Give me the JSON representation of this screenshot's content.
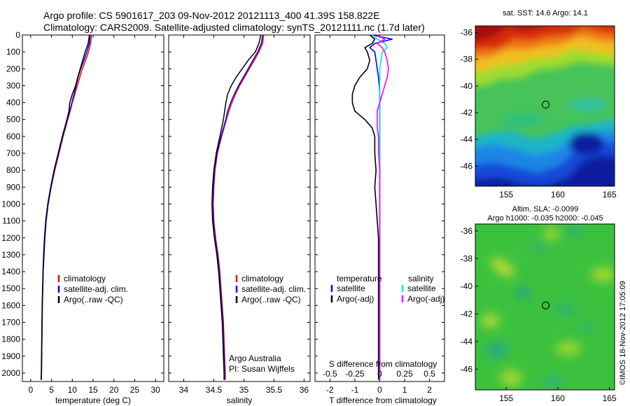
{
  "title": {
    "line1": "Argo profile: CS 5901617_203 09-Nov-2012 20121113_400 41.39S 158.822E",
    "line2": "Climatology: CARS2009. Satellite-adjusted climatology: synTS_20121111.nc (1.7d later)"
  },
  "colors": {
    "climatology": "#ff0000",
    "satellite": "#0000ff",
    "argo": "#000000",
    "sat_salinity": "#00e5e5",
    "argo_adj_salinity": "#ff00ff"
  },
  "depth_axis": {
    "ylim": [
      0,
      2050
    ],
    "ticks": [
      "0",
      "100",
      "200",
      "300",
      "400",
      "500",
      "600",
      "700",
      "800",
      "900",
      "1000",
      "1100",
      "1200",
      "1300",
      "1400",
      "1500",
      "1600",
      "1700",
      "1800",
      "1900",
      "2000"
    ]
  },
  "chart_data": [
    {
      "type": "line",
      "name": "temperature",
      "xlabel": "temperature (deg C)",
      "xlim": [
        -2,
        32
      ],
      "xticks": [
        "0",
        "5",
        "10",
        "15",
        "20",
        "25",
        "30"
      ],
      "legend": [
        "climatology",
        "satellite-adj. clim.",
        "Argo(..raw -QC)"
      ],
      "depth": [
        0,
        50,
        100,
        150,
        200,
        250,
        300,
        350,
        400,
        450,
        500,
        600,
        700,
        800,
        900,
        1000,
        1100,
        1200,
        1300,
        1400,
        1500,
        1600,
        1700,
        1800,
        1900,
        2000,
        2040
      ],
      "series": [
        {
          "name": "climatology",
          "color": "#ff0000",
          "values": [
            14.6,
            14.4,
            13.9,
            13.2,
            12.4,
            11.8,
            11.2,
            10.6,
            10.0,
            9.5,
            8.9,
            7.8,
            6.8,
            5.8,
            4.9,
            4.2,
            3.7,
            3.4,
            3.2,
            3.0,
            2.9,
            2.8,
            2.75,
            2.7,
            2.65,
            2.6,
            2.55
          ]
        },
        {
          "name": "satellite-adj. clim.",
          "color": "#0000ff",
          "values": [
            14.3,
            14.1,
            13.5,
            12.8,
            12.0,
            11.4,
            10.9,
            10.4,
            9.9,
            9.4,
            8.8,
            7.7,
            6.7,
            5.7,
            4.9,
            4.2,
            3.7,
            3.4,
            3.2,
            3.0,
            2.9,
            2.8,
            2.75,
            2.7,
            2.65,
            2.6,
            2.55
          ]
        },
        {
          "name": "Argo(..raw -QC)",
          "color": "#000000",
          "values": [
            14.1,
            13.8,
            13.1,
            12.5,
            11.9,
            11.3,
            10.8,
            10.0,
            9.4,
            9.2,
            8.7,
            7.6,
            6.6,
            5.6,
            4.8,
            4.1,
            3.6,
            3.3,
            3.1,
            2.95,
            2.85,
            2.75,
            2.7,
            2.65,
            2.6,
            2.55,
            2.5
          ]
        }
      ]
    },
    {
      "type": "line",
      "name": "salinity",
      "xlabel": "salinity",
      "xlim": [
        33.75,
        36.1
      ],
      "xticks": [
        "34",
        "34.5",
        "35",
        "35.5",
        "36"
      ],
      "legend": [
        "climatology",
        "satellite-adj. clim.",
        "Argo(..raw -QC)"
      ],
      "annotation": [
        "Argo Australia",
        "PI: Susan Wijffels"
      ],
      "depth": [
        0,
        50,
        100,
        150,
        200,
        250,
        300,
        350,
        400,
        450,
        500,
        600,
        700,
        800,
        900,
        1000,
        1100,
        1200,
        1300,
        1400,
        1500,
        1600,
        1700,
        1800,
        1900,
        2000,
        2040
      ],
      "series": [
        {
          "name": "climatology",
          "color": "#ff0000",
          "values": [
            35.33,
            35.31,
            35.25,
            35.17,
            35.09,
            35.01,
            34.93,
            34.86,
            34.8,
            34.75,
            34.71,
            34.63,
            34.56,
            34.52,
            34.5,
            34.49,
            34.5,
            34.53,
            34.57,
            34.6,
            34.62,
            34.64,
            34.66,
            34.67,
            34.68,
            34.69,
            34.69
          ]
        },
        {
          "name": "satellite-adj. clim.",
          "color": "#0000ff",
          "values": [
            35.31,
            35.29,
            35.23,
            35.15,
            35.07,
            34.99,
            34.91,
            34.84,
            34.78,
            34.73,
            34.7,
            34.62,
            34.55,
            34.51,
            34.49,
            34.48,
            34.49,
            34.52,
            34.56,
            34.59,
            34.61,
            34.63,
            34.65,
            34.66,
            34.67,
            34.68,
            34.68
          ]
        },
        {
          "name": "Argo(..raw -QC)",
          "color": "#000000",
          "values": [
            35.28,
            35.25,
            35.19,
            35.07,
            34.97,
            34.87,
            34.79,
            34.73,
            34.7,
            34.68,
            34.66,
            34.6,
            34.54,
            34.5,
            34.48,
            34.47,
            34.48,
            34.51,
            34.55,
            34.58,
            34.6,
            34.62,
            34.64,
            34.65,
            34.66,
            34.67,
            34.67
          ]
        }
      ]
    },
    {
      "type": "line",
      "name": "difference",
      "xlabel": "T difference from climatology",
      "xlabel_top": "S difference from climatology",
      "xlim": [
        -2.6,
        2.6
      ],
      "xticks": [
        "-2",
        "-1",
        "0",
        "1",
        "2"
      ],
      "xticks_top": [
        "-0.5",
        "-0.25",
        "0",
        "0.25",
        "0.5"
      ],
      "legend_temperature": {
        "title": "temperature",
        "items": [
          "satellite",
          "Argo(-adj)"
        ]
      },
      "legend_salinity": {
        "title": "salinity",
        "items": [
          "satellite",
          "Argo(-adj)"
        ]
      },
      "depth": [
        0,
        25,
        50,
        75,
        100,
        150,
        200,
        250,
        300,
        350,
        400,
        450,
        500,
        550,
        600,
        700,
        800,
        900,
        1000,
        1100,
        1200,
        1400,
        1600,
        1800,
        2000,
        2040
      ],
      "series": [
        {
          "name": "temperature satellite",
          "color": "#0000ff",
          "values": [
            -0.3,
            0.5,
            -0.2,
            -0.4,
            -0.2,
            -0.15,
            -0.1,
            -0.05,
            -0.02,
            0,
            0,
            0,
            0,
            0,
            0,
            0,
            0,
            0,
            0,
            0,
            0,
            0,
            0,
            0,
            0,
            0
          ]
        },
        {
          "name": "temperature Argo(-adj)",
          "color": "#000000",
          "values": [
            -0.4,
            -0.2,
            -0.3,
            -0.6,
            -0.5,
            -0.4,
            -0.5,
            -0.8,
            -1.0,
            -1.1,
            -1.1,
            -1.0,
            -0.6,
            -0.3,
            -0.2,
            -0.2,
            -0.15,
            -0.2,
            -0.15,
            -0.1,
            -0.05,
            -0.05,
            -0.05,
            -0.05,
            -0.05,
            -0.05
          ]
        },
        {
          "name": "salinity satellite",
          "color": "#00e5e5",
          "values": [
            -0.3,
            -0.1,
            0.2,
            0.3,
            0.1,
            0.05,
            0,
            0,
            0,
            0,
            0,
            0,
            0,
            0,
            0,
            0,
            0,
            0,
            0,
            0,
            0,
            0,
            0,
            0,
            0,
            0
          ]
        },
        {
          "name": "salinity Argo(-adj)",
          "color": "#ff00ff",
          "values": [
            -0.1,
            0.2,
            -0.1,
            0.1,
            0.2,
            0.3,
            0.35,
            0.3,
            0.2,
            0.1,
            0,
            -0.1,
            -0.1,
            -0.1,
            -0.05,
            -0.05,
            0,
            0,
            0,
            0,
            0,
            0,
            0,
            0,
            0,
            0
          ]
        }
      ]
    },
    {
      "type": "heatmap",
      "name": "sst_map",
      "title": "sat. SST: 14.6  Argo: 14.1",
      "xlim": [
        152,
        165.5
      ],
      "ylim": [
        -47.5,
        -35.5
      ],
      "xticks": [
        "155",
        "160",
        "165"
      ],
      "yticks": [
        "-36",
        "-38",
        "-40",
        "-42",
        "-44",
        "-46"
      ],
      "marker": {
        "lon": 158.822,
        "lat": -41.39
      }
    },
    {
      "type": "heatmap",
      "name": "sla_map",
      "title": "Altim. SLA: -0.0099",
      "subtitle": "Argo h1000: -0.035 h2000: -0.045",
      "xlim": [
        152,
        165.5
      ],
      "ylim": [
        -47.5,
        -35.5
      ],
      "xticks": [
        "155",
        "160",
        "165"
      ],
      "yticks": [
        "-36",
        "-38",
        "-40",
        "-42",
        "-44",
        "-46"
      ],
      "marker": {
        "lon": 158.822,
        "lat": -41.39
      }
    }
  ],
  "credit": "©IMOS 18-Nov-2012 17:05:09"
}
